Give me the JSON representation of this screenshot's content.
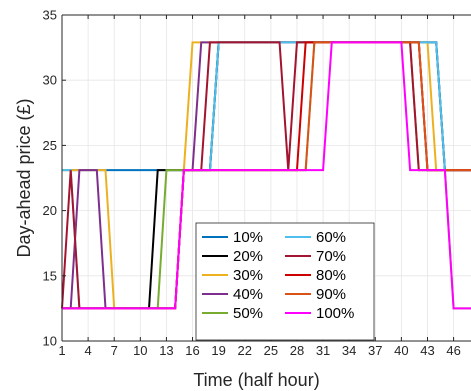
{
  "chart_data": {
    "type": "line",
    "title": "",
    "xlabel": "Time (half hour)",
    "ylabel": "Day-ahead price (£)",
    "xlim": [
      1,
      48
    ],
    "ylim": [
      10,
      35
    ],
    "xticks": [
      1,
      4,
      7,
      10,
      13,
      16,
      19,
      22,
      25,
      28,
      31,
      34,
      37,
      40,
      43,
      46
    ],
    "yticks": [
      10,
      15,
      20,
      25,
      30,
      35
    ],
    "grid": true,
    "legend_position": "bottom-center",
    "legend_columns": 2,
    "x": [
      1,
      2,
      3,
      4,
      5,
      6,
      7,
      8,
      9,
      10,
      11,
      12,
      13,
      14,
      15,
      16,
      17,
      18,
      19,
      20,
      21,
      22,
      23,
      24,
      25,
      26,
      27,
      28,
      29,
      30,
      31,
      32,
      33,
      34,
      35,
      36,
      37,
      38,
      39,
      40,
      41,
      42,
      43,
      44,
      45,
      46,
      47,
      48
    ],
    "series": [
      {
        "name": "10%",
        "color": "#0072BD",
        "values": [
          23.1,
          23.1,
          23.1,
          23.1,
          23.1,
          23.1,
          23.1,
          23.1,
          23.1,
          23.1,
          23.1,
          23.1,
          23.1,
          23.1,
          23.1,
          23.1,
          23.1,
          23.1,
          32.9,
          32.9,
          32.9,
          32.9,
          32.9,
          32.9,
          32.9,
          32.9,
          32.9,
          32.9,
          32.9,
          32.9,
          32.9,
          32.9,
          32.9,
          32.9,
          32.9,
          32.9,
          32.9,
          32.9,
          32.9,
          32.9,
          32.9,
          32.9,
          32.9,
          32.9,
          23.1,
          23.1,
          23.1,
          23.1
        ]
      },
      {
        "name": "20%",
        "color": "#000000",
        "values": [
          12.5,
          12.5,
          12.5,
          12.5,
          12.5,
          12.5,
          12.5,
          12.5,
          12.5,
          12.5,
          12.5,
          23.1,
          23.1,
          23.1,
          23.1,
          23.1,
          23.1,
          23.1,
          32.9,
          32.9,
          32.9,
          32.9,
          32.9,
          32.9,
          32.9,
          32.9,
          32.9,
          32.9,
          32.9,
          32.9,
          32.9,
          32.9,
          32.9,
          32.9,
          32.9,
          32.9,
          32.9,
          32.9,
          32.9,
          32.9,
          32.9,
          32.9,
          32.9,
          32.9,
          23.1,
          23.1,
          23.1,
          23.1
        ]
      },
      {
        "name": "30%",
        "color": "#EDB120",
        "values": [
          23.1,
          23.1,
          23.1,
          23.1,
          23.1,
          23.1,
          12.5,
          12.5,
          12.5,
          12.5,
          12.5,
          12.5,
          12.5,
          12.5,
          23.1,
          32.9,
          32.9,
          32.9,
          32.9,
          32.9,
          32.9,
          32.9,
          32.9,
          32.9,
          32.9,
          32.9,
          32.9,
          32.9,
          32.9,
          32.9,
          32.9,
          32.9,
          32.9,
          32.9,
          32.9,
          32.9,
          32.9,
          32.9,
          32.9,
          32.9,
          32.9,
          32.9,
          32.9,
          23.1,
          23.1,
          23.1,
          23.1,
          23.1
        ]
      },
      {
        "name": "40%",
        "color": "#7E2F8E",
        "values": [
          12.5,
          12.5,
          23.1,
          23.1,
          23.1,
          12.5,
          12.5,
          12.5,
          12.5,
          12.5,
          12.5,
          12.5,
          12.5,
          12.5,
          23.1,
          23.1,
          32.9,
          32.9,
          32.9,
          32.9,
          32.9,
          32.9,
          32.9,
          32.9,
          32.9,
          32.9,
          32.9,
          32.9,
          32.9,
          32.9,
          32.9,
          32.9,
          32.9,
          32.9,
          32.9,
          32.9,
          32.9,
          32.9,
          32.9,
          32.9,
          32.9,
          32.9,
          23.1,
          23.1,
          23.1,
          23.1,
          23.1,
          23.1
        ]
      },
      {
        "name": "50%",
        "color": "#77AC30",
        "values": [
          12.5,
          12.5,
          12.5,
          12.5,
          12.5,
          12.5,
          12.5,
          12.5,
          12.5,
          12.5,
          12.5,
          12.5,
          23.1,
          23.1,
          23.1,
          23.1,
          23.1,
          23.1,
          23.1,
          23.1,
          23.1,
          23.1,
          23.1,
          23.1,
          23.1,
          23.1,
          23.1,
          23.1,
          23.1,
          32.9,
          32.9,
          32.9,
          32.9,
          32.9,
          32.9,
          32.9,
          32.9,
          32.9,
          32.9,
          32.9,
          32.9,
          23.1,
          23.1,
          23.1,
          23.1,
          12.5,
          12.5,
          12.5
        ]
      },
      {
        "name": "60%",
        "color": "#4DBEEE",
        "values": [
          23.1,
          23.1,
          12.5,
          12.5,
          12.5,
          12.5,
          12.5,
          12.5,
          12.5,
          12.5,
          12.5,
          12.5,
          12.5,
          12.5,
          23.1,
          23.1,
          23.1,
          23.1,
          32.9,
          32.9,
          32.9,
          32.9,
          32.9,
          32.9,
          32.9,
          32.9,
          32.9,
          32.9,
          32.9,
          32.9,
          32.9,
          32.9,
          32.9,
          32.9,
          32.9,
          32.9,
          32.9,
          32.9,
          32.9,
          32.9,
          32.9,
          32.9,
          32.9,
          32.9,
          23.1,
          23.1,
          23.1,
          23.1
        ]
      },
      {
        "name": "70%",
        "color": "#A2142F",
        "values": [
          12.5,
          23.1,
          12.5,
          12.5,
          12.5,
          12.5,
          12.5,
          12.5,
          12.5,
          12.5,
          12.5,
          12.5,
          12.5,
          12.5,
          23.1,
          23.1,
          23.1,
          32.9,
          32.9,
          32.9,
          32.9,
          32.9,
          32.9,
          32.9,
          32.9,
          32.9,
          23.1,
          32.9,
          32.9,
          32.9,
          32.9,
          32.9,
          32.9,
          32.9,
          32.9,
          32.9,
          32.9,
          32.9,
          32.9,
          32.9,
          32.9,
          23.1,
          23.1,
          23.1,
          23.1,
          23.1,
          23.1,
          23.1
        ]
      },
      {
        "name": "80%",
        "color": "#CC0000",
        "values": [
          12.5,
          12.5,
          12.5,
          12.5,
          12.5,
          12.5,
          12.5,
          12.5,
          12.5,
          12.5,
          12.5,
          12.5,
          12.5,
          12.5,
          23.1,
          23.1,
          23.1,
          23.1,
          23.1,
          23.1,
          23.1,
          23.1,
          23.1,
          23.1,
          23.1,
          23.1,
          23.1,
          23.1,
          32.9,
          32.9,
          32.9,
          32.9,
          32.9,
          32.9,
          32.9,
          32.9,
          32.9,
          32.9,
          32.9,
          32.9,
          32.9,
          32.9,
          23.1,
          23.1,
          23.1,
          23.1,
          23.1,
          23.1
        ]
      },
      {
        "name": "90%",
        "color": "#D95319",
        "values": [
          12.5,
          12.5,
          12.5,
          12.5,
          12.5,
          12.5,
          12.5,
          12.5,
          12.5,
          12.5,
          12.5,
          12.5,
          12.5,
          12.5,
          23.1,
          23.1,
          23.1,
          23.1,
          23.1,
          23.1,
          23.1,
          23.1,
          23.1,
          23.1,
          23.1,
          23.1,
          23.1,
          23.1,
          23.1,
          32.9,
          32.9,
          32.9,
          32.9,
          32.9,
          32.9,
          32.9,
          32.9,
          32.9,
          32.9,
          32.9,
          32.9,
          32.9,
          23.1,
          23.1,
          23.1,
          23.1,
          23.1,
          23.1
        ]
      },
      {
        "name": "100%",
        "color": "#FF00FF",
        "values": [
          12.5,
          12.5,
          12.5,
          12.5,
          12.5,
          12.5,
          12.5,
          12.5,
          12.5,
          12.5,
          12.5,
          12.5,
          12.5,
          12.5,
          23.1,
          23.1,
          23.1,
          23.1,
          23.1,
          23.1,
          23.1,
          23.1,
          23.1,
          23.1,
          23.1,
          23.1,
          23.1,
          23.1,
          23.1,
          23.1,
          23.1,
          32.9,
          32.9,
          32.9,
          32.9,
          32.9,
          32.9,
          32.9,
          32.9,
          32.9,
          23.1,
          23.1,
          23.1,
          23.1,
          23.1,
          12.5,
          12.5,
          12.5
        ]
      }
    ]
  }
}
